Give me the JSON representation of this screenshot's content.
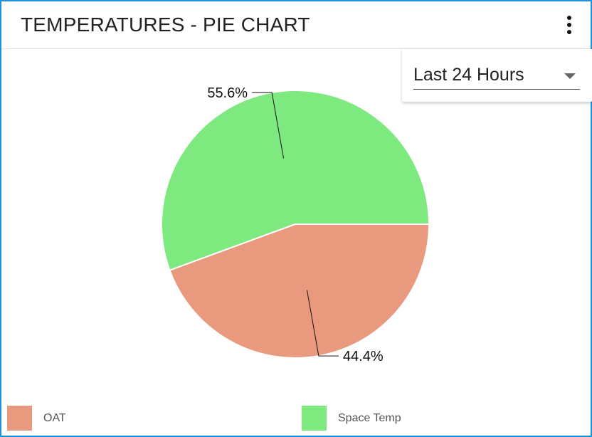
{
  "header": {
    "title": "TEMPERATURES - PIE CHART"
  },
  "time_range": {
    "selected": "Last 24 Hours"
  },
  "colors": {
    "oat": "#e99a7e",
    "space_temp": "#7ee97e",
    "border": "#1f8fe0"
  },
  "icons": {
    "menu": "more-vert-icon",
    "dropdown": "chevron-down-icon"
  },
  "chart_data": {
    "type": "pie",
    "slices": [
      {
        "name": "Space Temp",
        "value": 55.6,
        "label": "55.6%",
        "color": "#7ee97e"
      },
      {
        "name": "OAT",
        "value": 44.4,
        "label": "44.4%",
        "color": "#e99a7e"
      }
    ],
    "legend": [
      "OAT",
      "Space Temp"
    ],
    "legend_position": "bottom"
  }
}
